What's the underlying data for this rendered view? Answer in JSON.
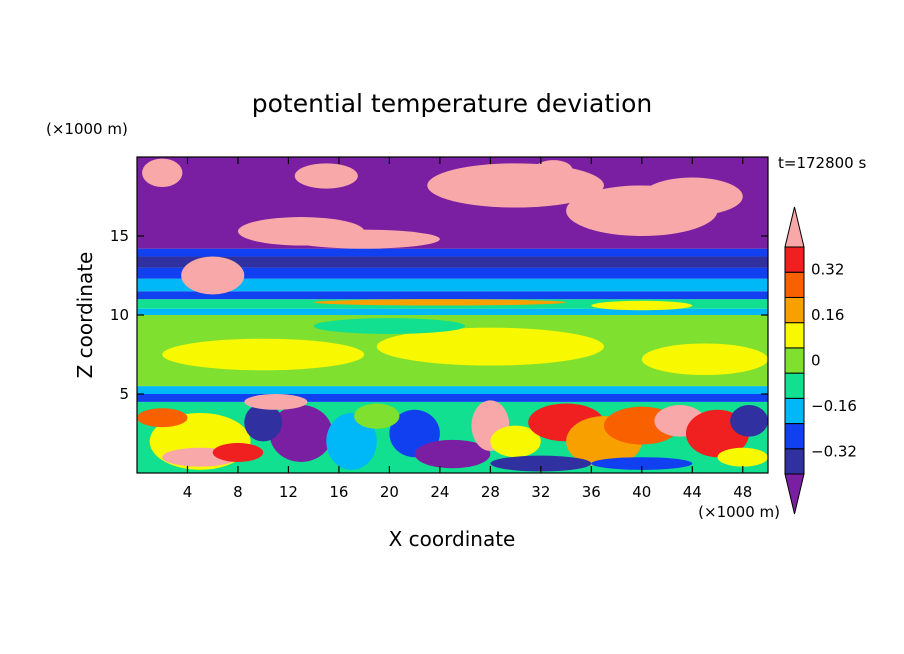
{
  "chart_data": {
    "type": "heatmap",
    "title": "potential temperature deviation",
    "time_label": "t=172800 s",
    "xlabel": "X coordinate",
    "ylabel": "Z coordinate",
    "x_unit": "(×1000 m)",
    "y_unit": "(×1000 m)",
    "xlim": [
      0,
      50
    ],
    "ylim": [
      0,
      20
    ],
    "x_ticks": [
      4,
      8,
      12,
      16,
      20,
      24,
      28,
      32,
      36,
      40,
      44,
      48
    ],
    "y_ticks": [
      5,
      10,
      15
    ],
    "colorbar": {
      "levels": [
        -0.4,
        -0.32,
        -0.24,
        -0.16,
        -0.08,
        0,
        0.08,
        0.16,
        0.24,
        0.32,
        0.4
      ],
      "tick_labels": [
        {
          "value": 0.32,
          "label": "0.32"
        },
        {
          "value": 0.16,
          "label": "0.16"
        },
        {
          "value": 0,
          "label": "0"
        },
        {
          "value": -0.16,
          "label": "−0.16"
        },
        {
          "value": -0.32,
          "label": "−0.32"
        }
      ],
      "colors": [
        "#7b1fa2",
        "#3030a0",
        "#1040f0",
        "#00b8f8",
        "#10e090",
        "#80e030",
        "#f8f800",
        "#f8a000",
        "#f86000",
        "#f02020",
        "#f8a8a8"
      ],
      "extends": "both"
    },
    "layers": [
      {
        "z_range": [
          14,
          20
        ],
        "dominant_value": "< -0.4",
        "note": "with > 0.4 patches"
      },
      {
        "z_range": [
          11,
          14
        ],
        "dominant_value": "-0.32 to -0.08"
      },
      {
        "z_range": [
          5.5,
          11
        ],
        "dominant_value": "-0.08 to 0.08"
      },
      {
        "z_range": [
          4.5,
          5.5
        ],
        "dominant_value": "-0.24 to -0.08"
      },
      {
        "z_range": [
          0,
          4.5
        ],
        "dominant_value": "mixed -0.4 to 0.4"
      }
    ]
  }
}
